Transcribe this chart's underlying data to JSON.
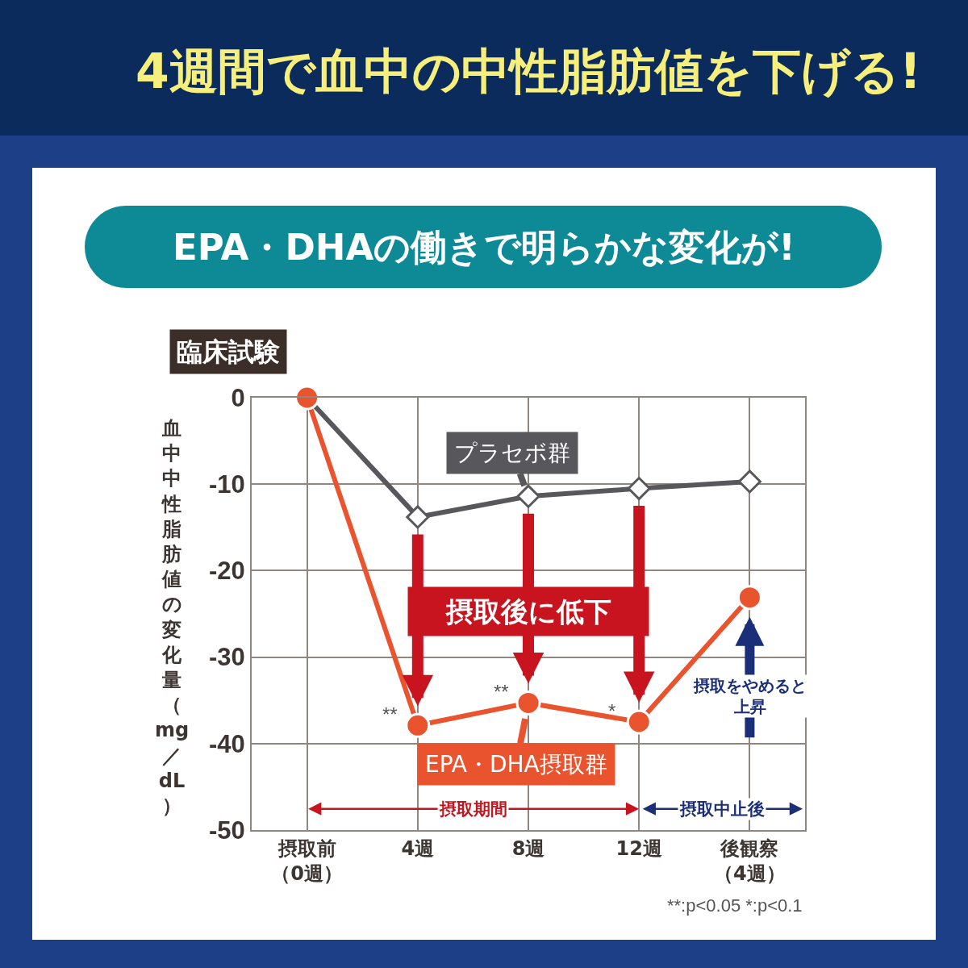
{
  "chart_data": {
    "type": "line",
    "title": "4週間で血中の中性脂肪値を下げる!",
    "subtitle": "EPA・DHAの働きで明らかな変化が!",
    "ylabel": "血中中性脂肪値の変化量（mg／dL）",
    "categories": [
      "摂取前（0週）",
      "4週",
      "8週",
      "12週",
      "後観察（4週）"
    ],
    "series": [
      {
        "name": "プラセボ群",
        "color": "#58575b",
        "marker": "diamond",
        "values": [
          0,
          -13.8,
          -11.4,
          -10.5,
          -9.7
        ]
      },
      {
        "name": "EPA・DHA摂取群",
        "color": "#e9532e",
        "marker": "circle",
        "values": [
          0,
          -37.9,
          -35.3,
          -37.5,
          -23.1
        ]
      }
    ],
    "ylim": [
      -50,
      0
    ],
    "yticks": [
      0,
      -10,
      -20,
      -30,
      -40,
      -50
    ],
    "grid": true,
    "line_style": "solid",
    "annotations": [
      "臨床試験",
      "摂取後に低下",
      "摂取をやめると上昇",
      "摂取期間",
      "摂取中止後",
      "**:p<0.05 *:p<0.1",
      {
        "text": "**",
        "x": "4週",
        "y": -37.9
      },
      {
        "text": "**",
        "x": "8週",
        "y": -35.3
      },
      {
        "text": "*",
        "x": "12週",
        "y": -37.5
      }
    ]
  }
}
